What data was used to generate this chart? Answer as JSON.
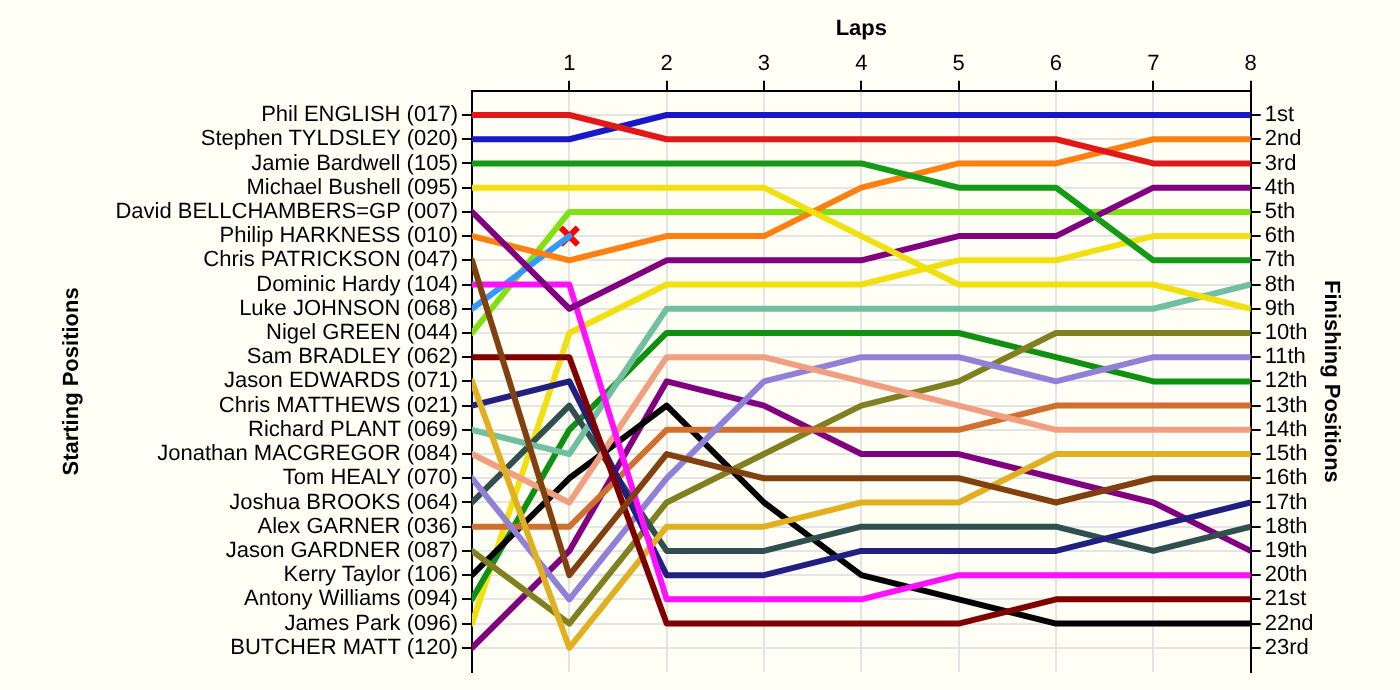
{
  "chart_data": {
    "type": "line",
    "xlabel": "Laps",
    "annotations": [
      "Starting Positions"
    ],
    "y2label": "Finishing Positions",
    "x": [
      0,
      1,
      2,
      3,
      4,
      5,
      6,
      7,
      8
    ],
    "xlim": [
      0,
      8
    ],
    "xticks": [
      1,
      2,
      3,
      4,
      5,
      6,
      7,
      8
    ],
    "y_categories": [
      "Phil ENGLISH (017)",
      "Stephen TYLDSLEY (020)",
      "Jamie Bardwell (105)",
      "Michael Bushell (095)",
      "David BELLCHAMBERS=GP (007)",
      "Philip HARKNESS (010)",
      "Chris PATRICKSON (047)",
      "Dominic Hardy (104)",
      "Luke JOHNSON (068)",
      "Nigel GREEN (044)",
      "Sam BRADLEY (062)",
      "Jason EDWARDS (071)",
      "Chris MATTHEWS (021)",
      "Richard PLANT (069)",
      "Jonathan MACGREGOR (084)",
      "Tom HEALY (070)",
      "Joshua BROOKS (064)",
      "Alex GARNER (036)",
      "Jason GARDNER (087)",
      "Kerry Taylor (106)",
      "Antony Williams (094)",
      "James Park (096)",
      "BUTCHER MATT (120)"
    ],
    "y2lim": [
      24,
      0
    ],
    "y2ticks": [
      {
        "value": 1,
        "label": "1st"
      },
      {
        "value": 2,
        "label": "2nd"
      },
      {
        "value": 3,
        "label": "3rd"
      },
      {
        "value": 4,
        "label": "4th"
      },
      {
        "value": 5,
        "label": "5th"
      },
      {
        "value": 6,
        "label": "6th"
      },
      {
        "value": 7,
        "label": "7th"
      },
      {
        "value": 8,
        "label": "8th"
      },
      {
        "value": 9,
        "label": "9th"
      },
      {
        "value": 10,
        "label": "10th"
      },
      {
        "value": 11,
        "label": "11th"
      },
      {
        "value": 12,
        "label": "12th"
      },
      {
        "value": 13,
        "label": "13th"
      },
      {
        "value": 14,
        "label": "14th"
      },
      {
        "value": 15,
        "label": "15th"
      },
      {
        "value": 16,
        "label": "16th"
      },
      {
        "value": 17,
        "label": "17th"
      },
      {
        "value": 18,
        "label": "18th"
      },
      {
        "value": 19,
        "label": "19th"
      },
      {
        "value": 20,
        "label": "20th"
      },
      {
        "value": 21,
        "label": "21st"
      },
      {
        "value": 22,
        "label": "22nd"
      },
      {
        "value": 23,
        "label": "23rd"
      }
    ],
    "grid": true,
    "legend": false,
    "marker": "none",
    "line_style": "solid",
    "series": [
      {
        "axis": "y2",
        "color": "#e01818",
        "values": [
          1,
          1,
          2,
          2,
          2,
          2,
          2,
          3,
          3
        ]
      },
      {
        "axis": "y2",
        "color": "#1818c8",
        "values": [
          2,
          2,
          1,
          1,
          1,
          1,
          1,
          1,
          1
        ]
      },
      {
        "axis": "y2",
        "color": "#149a14",
        "values": [
          3,
          3,
          3,
          3,
          3,
          4,
          4,
          7,
          7
        ]
      },
      {
        "axis": "y2",
        "color": "#f0e010",
        "values": [
          4,
          4,
          4,
          4,
          6,
          8,
          8,
          8,
          9
        ]
      },
      {
        "axis": "y2",
        "color": "#800080",
        "values": [
          5,
          9,
          7,
          7,
          7,
          6,
          6,
          4,
          4
        ]
      },
      {
        "axis": "y2",
        "color": "#ff8010",
        "values": [
          6,
          7,
          6,
          6,
          4,
          3,
          3,
          2,
          2
        ]
      },
      {
        "axis": "y2",
        "color": "#804010",
        "values": [
          7,
          20,
          15,
          16,
          16,
          16,
          17,
          16,
          16
        ]
      },
      {
        "axis": "y2",
        "color": "#ff10ff",
        "values": [
          8,
          8,
          21,
          21,
          21,
          20,
          20,
          20,
          20
        ]
      },
      {
        "axis": "y2",
        "color": "#3399ff",
        "values": [
          9,
          6,
          null,
          null,
          null,
          null,
          null,
          null,
          null
        ]
      },
      {
        "axis": "y2",
        "color": "#80e010",
        "values": [
          10,
          5,
          5,
          5,
          5,
          5,
          5,
          5,
          5
        ]
      },
      {
        "axis": "y2",
        "color": "#800000",
        "values": [
          11,
          11,
          22,
          22,
          22,
          22,
          21,
          21,
          21
        ]
      },
      {
        "axis": "y2",
        "color": "#e0b020",
        "values": [
          12,
          23,
          18,
          18,
          17,
          17,
          15,
          15,
          15
        ]
      },
      {
        "axis": "y2",
        "color": "#202080",
        "values": [
          13,
          12,
          20,
          20,
          19,
          19,
          19,
          18,
          17
        ]
      },
      {
        "axis": "y2",
        "color": "#70c0a0",
        "values": [
          14,
          15,
          9,
          9,
          9,
          9,
          9,
          9,
          8
        ]
      },
      {
        "axis": "y2",
        "color": "#f0a080",
        "values": [
          15,
          17,
          11,
          11,
          12,
          13,
          14,
          14,
          14
        ]
      },
      {
        "axis": "y2",
        "color": "#9080d8",
        "values": [
          16,
          21,
          16,
          12,
          11,
          11,
          12,
          11,
          11
        ]
      },
      {
        "axis": "y2",
        "color": "#305050",
        "values": [
          17,
          13,
          19,
          19,
          18,
          18,
          18,
          19,
          18
        ]
      },
      {
        "axis": "y2",
        "color": "#d07030",
        "values": [
          18,
          18,
          14,
          14,
          14,
          14,
          13,
          13,
          13
        ]
      },
      {
        "axis": "y2",
        "color": "#808020",
        "values": [
          19,
          22,
          17,
          15,
          13,
          12,
          10,
          10,
          10
        ]
      },
      {
        "axis": "y2",
        "color": "#000000",
        "values": [
          20,
          16,
          13,
          17,
          20,
          21,
          22,
          22,
          22
        ]
      },
      {
        "axis": "y2",
        "color": "#109010",
        "values": [
          21,
          14,
          10,
          10,
          10,
          10,
          11,
          12,
          12
        ]
      },
      {
        "axis": "y2",
        "color": "#f0e010",
        "values": [
          22,
          10,
          8,
          8,
          8,
          7,
          7,
          6,
          6
        ]
      },
      {
        "axis": "y2",
        "color": "#800080",
        "values": [
          23,
          19,
          12,
          13,
          15,
          15,
          16,
          17,
          19
        ]
      },
      {
        "axis": "y2",
        "type": "scatter",
        "color": "#ff0000",
        "marker": "cross",
        "x": [
          1
        ],
        "values": [
          6
        ]
      }
    ]
  }
}
